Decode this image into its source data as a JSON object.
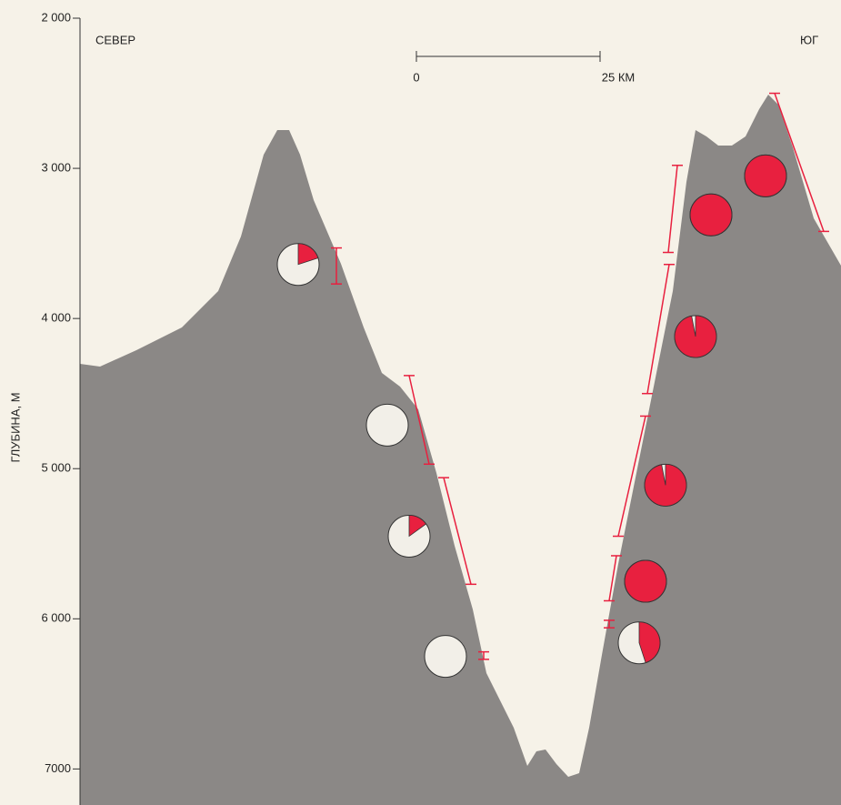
{
  "chart_data": {
    "type": "profile",
    "y_label": "ГЛУБИНА, М",
    "left_label": "СЕВЕР",
    "right_label": "ЮГ",
    "scale_start": "0",
    "scale_end": "25 КМ",
    "ylim": [
      2000,
      7240
    ],
    "yticks": [
      {
        "value": 2000,
        "label": "2 000"
      },
      {
        "value": 3000,
        "label": "3 000"
      },
      {
        "value": 4000,
        "label": "4 000"
      },
      {
        "value": 5000,
        "label": "5 000"
      },
      {
        "value": 6000,
        "label": "6 000"
      },
      7000
    ],
    "terrain_color": "#8b8886",
    "red_color": "#e8203f",
    "samples": [
      {
        "depth": 3640,
        "red": 20
      },
      {
        "depth": 4710,
        "red": 0
      },
      {
        "depth": 5450,
        "red": 15
      },
      {
        "depth": 6250,
        "red": 0
      },
      {
        "depth": 3050,
        "red": 100
      },
      {
        "depth": 3310,
        "red": 100
      },
      {
        "depth": 4120,
        "red": 97
      },
      {
        "depth": 5110,
        "red": 97
      },
      {
        "depth": 5750,
        "red": 100
      },
      {
        "depth": 6160,
        "red": 45
      }
    ],
    "ranges": [
      [
        3530,
        3770
      ],
      [
        4380,
        4970
      ],
      [
        5060,
        5770
      ],
      [
        6220,
        6270
      ],
      [
        2500,
        3420
      ],
      [
        2980,
        3560
      ],
      [
        3640,
        4500
      ],
      [
        4650,
        5450
      ],
      [
        5580,
        5880
      ],
      [
        6010,
        6060
      ]
    ]
  }
}
